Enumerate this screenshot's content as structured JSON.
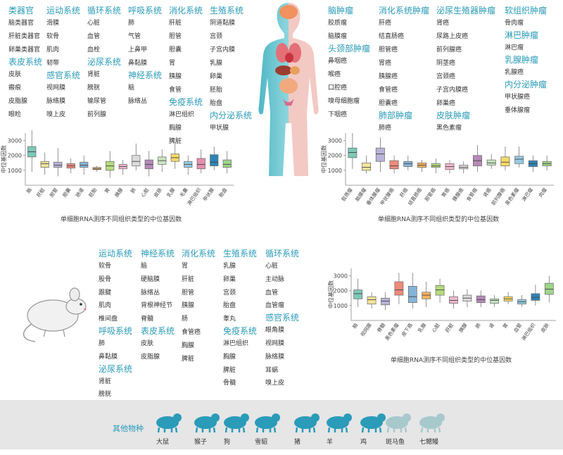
{
  "human_columns": [
    {
      "blocks": [
        {
          "cat": "类器官",
          "items": [
            "脑类器官",
            "肝脏类器官",
            "卵巢类器官"
          ]
        },
        {
          "cat": "表皮系统",
          "items": [
            "皮肤",
            "瘢痕",
            "皮脂腺",
            "眼睑"
          ]
        }
      ]
    },
    {
      "blocks": [
        {
          "cat": "运动系统",
          "items": [
            "滑膜",
            "软骨",
            "肌肉",
            "韧带"
          ]
        },
        {
          "cat": "感官系统",
          "items": [
            "视网膜",
            "脉络膜",
            "嗅上皮"
          ]
        }
      ]
    },
    {
      "blocks": [
        {
          "cat": "循环系统",
          "items": [
            "心脏",
            "血管",
            "血栓"
          ]
        },
        {
          "cat": "泌尿系统",
          "items": [
            "肾脏",
            "膀胱",
            "输尿管",
            "前列腺"
          ]
        }
      ]
    },
    {
      "blocks": [
        {
          "cat": "呼吸系统",
          "items": [
            "肺",
            "气管",
            "上鼻甲",
            "鼻黏膜"
          ]
        },
        {
          "cat": "神经系统",
          "items": [
            "脑",
            "脉络丛"
          ]
        }
      ]
    },
    {
      "blocks": [
        {
          "cat": "消化系统",
          "items": [
            "肝脏",
            "胆管",
            "胆囊",
            "胃",
            "胰腺",
            "食管"
          ]
        },
        {
          "cat": "免疫系统",
          "items": [
            "淋巴组织",
            "胸腺",
            "脾脏"
          ]
        }
      ]
    },
    {
      "blocks": [
        {
          "cat": "生殖系统",
          "items": [
            "阴道黏膜",
            "宫颈",
            "子宫内膜",
            "乳腺",
            "卵巢",
            "胚胎",
            "胎盘"
          ]
        },
        {
          "cat": "内分泌系统",
          "items": [
            "甲状腺"
          ]
        }
      ]
    }
  ],
  "tumor_columns": [
    {
      "blocks": [
        {
          "cat": "脑肿瘤",
          "items": [
            "胶质瘤",
            "脑膜瘤"
          ]
        },
        {
          "cat": "头颈部肿瘤",
          "items": [
            "鼻咽癌",
            "喉癌",
            "口腔癌",
            "嗅母细胞瘤",
            "下咽癌"
          ]
        }
      ]
    },
    {
      "blocks": [
        {
          "cat": "消化系统肿瘤",
          "items": [
            "肝癌",
            "结直肠癌",
            "胆管癌",
            "胃癌",
            "胰腺癌",
            "食管癌",
            "胆囊癌"
          ]
        },
        {
          "cat": "肺部肿瘤",
          "items": [
            "肺癌"
          ]
        }
      ]
    },
    {
      "blocks": [
        {
          "cat": "泌尿生殖器肿瘤",
          "items": [
            "肾癌",
            "尿路上皮癌",
            "前列腺癌",
            "阴茎癌",
            "宫颈癌",
            "子宫内膜癌",
            "卵巢癌"
          ]
        },
        {
          "cat": "皮肤肿瘤",
          "items": [
            "黑色素瘤"
          ]
        }
      ]
    },
    {
      "blocks": [
        {
          "cat": "软组织肿瘤",
          "items": [
            "骨肉瘤"
          ]
        },
        {
          "cat": "淋巴肿瘤",
          "items": [
            "淋巴瘤"
          ]
        },
        {
          "cat": "乳腺肿瘤",
          "items": [
            "乳腺癌"
          ]
        },
        {
          "cat": "内分泌肿瘤",
          "items": [
            "甲状腺癌",
            "垂体腺瘤"
          ]
        }
      ]
    }
  ],
  "mouse_columns": [
    {
      "blocks": [
        {
          "cat": "运动系统",
          "items": [
            "软骨",
            "股骨",
            "跟腱",
            "肌肉",
            "椎间盘"
          ]
        },
        {
          "cat": "呼吸系统",
          "items": [
            "肺",
            "鼻黏膜"
          ]
        },
        {
          "cat": "泌尿系统",
          "items": [
            "肾脏",
            "膀胱"
          ]
        }
      ]
    },
    {
      "blocks": [
        {
          "cat": "神经系统",
          "items": [
            "脑",
            "硬脑膜",
            "脉络丛",
            "背根神经节",
            "脊髓"
          ]
        },
        {
          "cat": "表皮系统",
          "items": [
            "皮肤",
            "皮脂腺"
          ]
        }
      ]
    },
    {
      "blocks": [
        {
          "cat": "消化系统",
          "items": [
            "胃",
            "肝脏",
            "胆管",
            "胰腺",
            "肠",
            "食管癌",
            "胸腺",
            "脾脏"
          ]
        }
      ]
    },
    {
      "blocks": [
        {
          "cat": "生殖系统",
          "items": [
            "乳腺",
            "卵巢",
            "宫颈",
            "胎盘",
            "睾丸"
          ]
        },
        {
          "cat": "免疫系统",
          "items": [
            "淋巴组织",
            "胸腺",
            "脾脏",
            "骨髓"
          ]
        }
      ]
    },
    {
      "blocks": [
        {
          "cat": "循环系统",
          "items": [
            "心脏",
            "主动脉",
            "血管",
            "血管瘤"
          ]
        },
        {
          "cat": "感官系统",
          "items": [
            "眼角膜",
            "视网膜",
            "脉络膜",
            "耳蜗",
            "嗅上皮"
          ]
        }
      ]
    }
  ],
  "captions": {
    "chart1": "单细胞RNA测序不同组织类型的中位基因数",
    "chart2": "单细胞RNA测序不同组织类型的中位基因数",
    "chart3": "单细胞RNA测序不同组织类型的中位基因数"
  },
  "species": {
    "title": "其他物种",
    "items": [
      "大鼠",
      "猴子",
      "狗",
      "雪貂",
      "猪",
      "羊",
      "鸡",
      "斑马鱼",
      "七鳃鳗"
    ]
  },
  "chart_data": [
    {
      "type": "boxplot",
      "ylabel": "中位基因数",
      "ylim": [
        0,
        3500
      ],
      "yticks": [
        1000,
        2000,
        3000
      ],
      "categories": [
        "脑",
        "肝脏",
        "胆管",
        "胆囊",
        "肠道",
        "胚胎",
        "胃",
        "胰腺",
        "肺",
        "心脏",
        "皮肤",
        "乳腺",
        "毛囊",
        "淋巴组织",
        "甲状腺",
        "胎盘"
      ],
      "colors": [
        "#7ec8b8",
        "#f2e49c",
        "#b9b3d9",
        "#ee8a7a",
        "#86b4d6",
        "#f4b25e",
        "#b7dc7e",
        "#f2b8cf",
        "#dcdcdc",
        "#b58ab8",
        "#c8e5c0",
        "#f6d868",
        "#95cbe0",
        "#e58fb0",
        "#2f84b6",
        "#9fd48a"
      ],
      "boxes": [
        [
          900,
          1900,
          2250,
          2600,
          3700
        ],
        [
          700,
          1200,
          1450,
          1600,
          2200
        ],
        [
          600,
          1200,
          1350,
          1550,
          2500
        ],
        [
          800,
          1150,
          1300,
          1450,
          1800
        ],
        [
          700,
          1200,
          1350,
          1550,
          2000
        ],
        [
          900,
          1050,
          1100,
          1200,
          1300
        ],
        [
          500,
          1000,
          1300,
          1600,
          2300
        ],
        [
          700,
          1100,
          1250,
          1400,
          1700
        ],
        [
          1000,
          1300,
          1600,
          2000,
          2800
        ],
        [
          600,
          1100,
          1400,
          1700,
          2300
        ],
        [
          900,
          1400,
          1650,
          1900,
          2400
        ],
        [
          1100,
          1600,
          1850,
          2100,
          2900
        ],
        [
          700,
          1200,
          1400,
          1600,
          2000
        ],
        [
          800,
          1100,
          1400,
          1800,
          2400
        ],
        [
          1000,
          1300,
          1550,
          2050,
          2600
        ],
        [
          800,
          1200,
          1400,
          1700,
          2300
        ]
      ]
    },
    {
      "type": "boxplot",
      "ylabel": "中位基因数",
      "ylim": [
        0,
        3500
      ],
      "yticks": [
        1000,
        2000,
        3000
      ],
      "categories": [
        "胶质瘤",
        "脑膜瘤",
        "垂体腺瘤",
        "甲状腺癌",
        "肝癌",
        "结直肠癌",
        "胆管癌",
        "胃癌",
        "胰腺癌",
        "食管癌",
        "肾癌",
        "前列腺癌",
        "黑色素瘤",
        "淋巴瘤",
        "肉瘤"
      ],
      "colors": [
        "#7ec8b8",
        "#f2e49c",
        "#b9b3d9",
        "#ee8a7a",
        "#86b4d6",
        "#f4b25e",
        "#b7dc7e",
        "#f2b8cf",
        "#dcdcdc",
        "#b58ab8",
        "#c8e5c0",
        "#f6d868",
        "#95cbe0",
        "#2f84b6",
        "#9fd48a"
      ],
      "boxes": [
        [
          1100,
          1850,
          2200,
          2500,
          3500
        ],
        [
          800,
          1000,
          1200,
          1500,
          2000
        ],
        [
          900,
          1600,
          2100,
          2500,
          3200
        ],
        [
          800,
          1100,
          1300,
          1650,
          2000
        ],
        [
          1000,
          1250,
          1450,
          1600,
          2000
        ],
        [
          900,
          1200,
          1350,
          1500,
          1700
        ],
        [
          800,
          1200,
          1300,
          1450,
          1800
        ],
        [
          800,
          1050,
          1250,
          1450,
          1700
        ],
        [
          800,
          1100,
          1200,
          1350,
          1600
        ],
        [
          900,
          1300,
          1650,
          2000,
          2700
        ],
        [
          1100,
          1350,
          1500,
          1700,
          2100
        ],
        [
          1000,
          1300,
          1550,
          1900,
          2600
        ],
        [
          1200,
          1450,
          1750,
          1950,
          2600
        ],
        [
          900,
          1250,
          1450,
          1650,
          2000
        ],
        [
          1000,
          1300,
          1450,
          1600,
          2000
        ]
      ]
    },
    {
      "type": "boxplot",
      "ylabel": "中位基因数",
      "ylim": [
        0,
        3500
      ],
      "yticks": [
        1000,
        2000,
        3000
      ],
      "categories": [
        "脑",
        "视网膜",
        "脊髓",
        "黑色素瘤",
        "皮下癌",
        "乳腺",
        "心脏",
        "肝脏",
        "胰腺",
        "肺",
        "肾",
        "胃",
        "血管",
        "淋巴组织",
        "皮肤"
      ],
      "colors": [
        "#7ec8b8",
        "#f2e49c",
        "#b9b3d9",
        "#ee8a7a",
        "#86b4d6",
        "#f4b25e",
        "#b7dc7e",
        "#f2b8cf",
        "#dcdcdc",
        "#b58ab8",
        "#c8e5c0",
        "#f6d868",
        "#95cbe0",
        "#2f84b6",
        "#9fd48a"
      ],
      "boxes": [
        [
          900,
          1450,
          1800,
          2050,
          2800
        ],
        [
          800,
          1100,
          1400,
          1600,
          1900
        ],
        [
          700,
          1050,
          1300,
          1500,
          1900
        ],
        [
          1100,
          1700,
          2050,
          2600,
          3200
        ],
        [
          800,
          1200,
          1600,
          2300,
          3200
        ],
        [
          900,
          1450,
          1700,
          1900,
          2600
        ],
        [
          1200,
          1700,
          2050,
          2350,
          2800
        ],
        [
          800,
          1150,
          1350,
          1600,
          2000
        ],
        [
          900,
          1300,
          1500,
          1700,
          2100
        ],
        [
          900,
          1200,
          1400,
          1650,
          2000
        ],
        [
          900,
          1150,
          1350,
          1450,
          1700
        ],
        [
          1100,
          1300,
          1450,
          1600,
          1900
        ],
        [
          900,
          1100,
          1250,
          1400,
          1700
        ],
        [
          1000,
          1350,
          1550,
          1800,
          2400
        ],
        [
          1200,
          1750,
          2100,
          2500,
          3000
        ]
      ]
    }
  ]
}
